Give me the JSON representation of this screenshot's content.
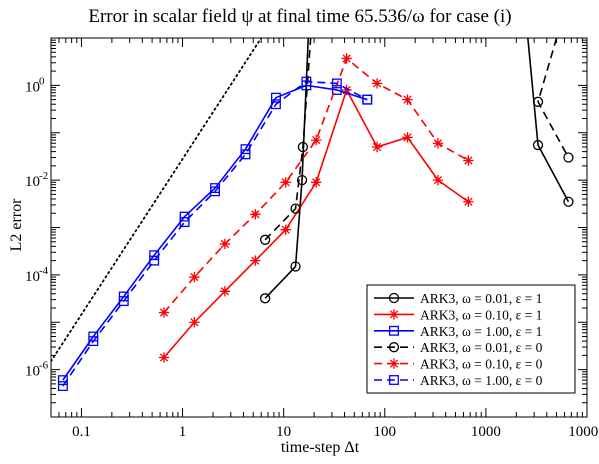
{
  "chart_data": {
    "type": "line",
    "title": "Error in scalar field ψ at final time 65.536/ω for case (i)",
    "xlabel": "time-step Δt",
    "ylabel": "L2 error",
    "xscale": "log",
    "yscale": "log",
    "xlim": [
      0.05,
      10000
    ],
    "ylim": [
      1e-07,
      10
    ],
    "grid": false,
    "legend_position": "bottom-right",
    "x_ticks": [
      {
        "value": 0.1,
        "label": "0.1"
      },
      {
        "value": 1,
        "label": "1"
      },
      {
        "value": 10,
        "label": "10"
      },
      {
        "value": 100,
        "label": "100"
      },
      {
        "value": 1000,
        "label": "1000"
      },
      {
        "value": 10000,
        "label": "10000"
      }
    ],
    "y_ticks": [
      {
        "value": 1e-06,
        "base": "10",
        "exp": "-6"
      },
      {
        "value": 0.0001,
        "base": "10",
        "exp": "-4"
      },
      {
        "value": 0.01,
        "base": "10",
        "exp": "-2"
      },
      {
        "value": 1,
        "base": "10",
        "exp": "0"
      }
    ],
    "reference_line": {
      "style": "dotted",
      "color": "#000000",
      "points": [
        [
          0.05,
          1.5e-06
        ],
        [
          6,
          10
        ]
      ]
    },
    "series": [
      {
        "name": "ARK3, ω = 0.01, ε = 1",
        "color": "#000000",
        "dash": "solid",
        "marker": "circle",
        "segments": [
          [
            [
              6.5536,
              3.2e-05
            ],
            [
              13.1072,
              0.00015
            ],
            [
              15.2,
              0.01
            ],
            [
              17.5,
              10
            ]
          ],
          [
            [
              2600,
              10
            ],
            [
              3276.8,
              0.055
            ],
            [
              6553.6,
              0.0035
            ]
          ]
        ]
      },
      {
        "name": "ARK3, ω = 0.10, ε = 1",
        "color": "#ff0000",
        "dash": "solid",
        "marker": "star",
        "segments": [
          [
            [
              0.65536,
              1.8e-06
            ],
            [
              1.31072,
              1e-05
            ],
            [
              2.62144,
              4.5e-05
            ],
            [
              5.24288,
              0.0002
            ],
            [
              10.48576,
              0.0009
            ],
            [
              20.97152,
              0.009
            ],
            [
              41.94304,
              0.8
            ],
            [
              83.88608,
              0.05
            ],
            [
              167.77216,
              0.08
            ],
            [
              335.54432,
              0.01
            ],
            [
              671.08864,
              0.0035
            ]
          ]
        ]
      },
      {
        "name": "ARK3, ω = 1.00, ε = 1",
        "color": "#0000ff",
        "dash": "solid",
        "marker": "square",
        "segments": [
          [
            [
              0.065536,
              6e-07
            ],
            [
              0.131072,
              5e-06
            ],
            [
              0.262144,
              3.5e-05
            ],
            [
              0.524288,
              0.00026
            ],
            [
              1.048576,
              0.0017
            ],
            [
              2.097152,
              0.0068
            ],
            [
              4.194304,
              0.045
            ],
            [
              8.388608,
              0.55
            ],
            [
              16.777216,
              1.0
            ],
            [
              33.554432,
              0.8
            ],
            [
              67.108864,
              0.5
            ]
          ]
        ]
      },
      {
        "name": "ARK3, ω = 0.01, ε = 0",
        "color": "#000000",
        "dash": "dashed",
        "marker": "circle",
        "segments": [
          [
            [
              6.5536,
              0.00055
            ],
            [
              13.1072,
              0.0025
            ],
            [
              15.5,
              0.05
            ],
            [
              18.5,
              10
            ]
          ],
          [
            [
              5000,
              10
            ],
            [
              3276.8,
              0.45
            ],
            [
              6553.6,
              0.03
            ]
          ]
        ]
      },
      {
        "name": "ARK3, ω = 0.10, ε = 0",
        "color": "#ff0000",
        "dash": "dashed",
        "marker": "star",
        "segments": [
          [
            [
              0.65536,
              1.6e-05
            ],
            [
              1.31072,
              9e-05
            ],
            [
              2.62144,
              0.00045
            ],
            [
              5.24288,
              0.0019
            ],
            [
              10.48576,
              0.009
            ],
            [
              20.97152,
              0.07
            ],
            [
              41.94304,
              3.7
            ],
            [
              83.88608,
              1.1
            ],
            [
              167.77216,
              0.5
            ],
            [
              335.54432,
              0.06
            ],
            [
              671.08864,
              0.026
            ]
          ]
        ]
      },
      {
        "name": "ARK3, ω = 1.00, ε = 0",
        "color": "#0000ff",
        "dash": "dashed",
        "marker": "square",
        "segments": [
          [
            [
              0.065536,
              4.5e-07
            ],
            [
              0.131072,
              4e-06
            ],
            [
              0.262144,
              2.8e-05
            ],
            [
              0.524288,
              0.0002
            ],
            [
              1.048576,
              0.0013
            ],
            [
              2.097152,
              0.0058
            ],
            [
              4.194304,
              0.035
            ],
            [
              8.388608,
              0.4
            ],
            [
              16.777216,
              1.2
            ],
            [
              33.554432,
              1.1
            ],
            [
              67.108864,
              0.5
            ]
          ]
        ]
      }
    ]
  }
}
